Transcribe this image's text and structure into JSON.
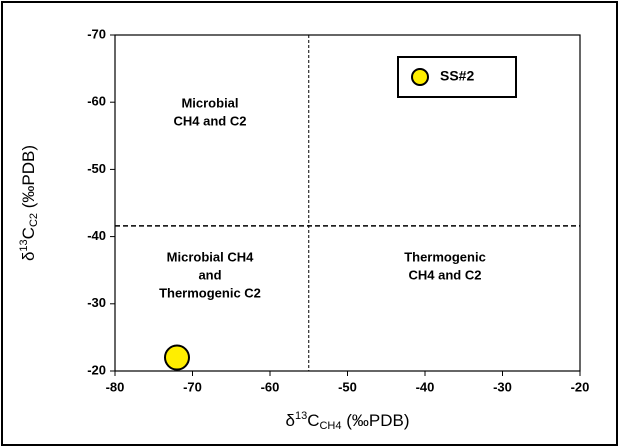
{
  "chart_data": {
    "type": "scatter",
    "x_label": {
      "prefix": "δ",
      "sup": "13",
      "mid": "C",
      "sub": "CH4",
      "suffix": " (‰PDB)"
    },
    "y_label": {
      "prefix": "δ",
      "sup": "13",
      "mid": "C",
      "sub": "C2",
      "suffix": " (‰PDB)"
    },
    "xlim": [
      -80,
      -20
    ],
    "xticks": [
      -80,
      -70,
      -60,
      -50,
      -40,
      -30,
      -20
    ],
    "ylim": [
      -20,
      -70
    ],
    "yticks": [
      -20,
      -30,
      -40,
      -50,
      -60,
      -70
    ],
    "series": [
      {
        "name": "SS#2",
        "color": "#ffee00",
        "x": [
          -72
        ],
        "values": [
          -22
        ]
      }
    ],
    "reference_lines": {
      "x": [
        -55
      ],
      "y": [
        -41.6
      ]
    },
    "annotations": [
      [
        "Microbial",
        "CH4 and C2"
      ],
      [
        "Microbial CH4",
        "and",
        "Thermogenic C2"
      ],
      [
        "Thermogenic",
        "CH4 and C2"
      ]
    ],
    "legend": "upper right"
  }
}
